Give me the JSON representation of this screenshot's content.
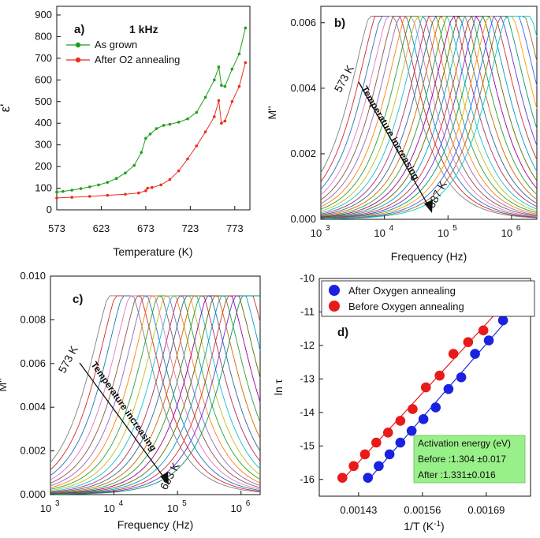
{
  "chart_data": [
    {
      "panel": "a)",
      "type": "scatter",
      "title": "1 kHz",
      "xlabel": "Temperature (K)",
      "ylabel": "ε'",
      "xlim": [
        573,
        790
      ],
      "ylim": [
        0,
        940
      ],
      "xticks": [
        "573",
        "623",
        "673",
        "723",
        "773"
      ],
      "yticks": [
        "0",
        "100",
        "200",
        "300",
        "400",
        "500",
        "600",
        "700",
        "800",
        "900"
      ],
      "legend_position": "top-left",
      "series": [
        {
          "name": "As grown",
          "color": "#1f9e1f",
          "points": [
            [
              573,
              82
            ],
            [
              580,
              85
            ],
            [
              590,
              91
            ],
            [
              600,
              98
            ],
            [
              610,
              106
            ],
            [
              620,
              115
            ],
            [
              630,
              127
            ],
            [
              640,
              145
            ],
            [
              650,
              170
            ],
            [
              660,
              205
            ],
            [
              668,
              265
            ],
            [
              673,
              330
            ],
            [
              678,
              350
            ],
            [
              685,
              375
            ],
            [
              693,
              390
            ],
            [
              700,
              395
            ],
            [
              710,
              405
            ],
            [
              720,
              420
            ],
            [
              730,
              450
            ],
            [
              740,
              520
            ],
            [
              750,
              600
            ],
            [
              755,
              660
            ],
            [
              758,
              575
            ],
            [
              762,
              570
            ],
            [
              770,
              650
            ],
            [
              778,
              720
            ],
            [
              785,
              840
            ]
          ]
        },
        {
          "name": "After O2 annealing",
          "color": "#e8301a",
          "points": [
            [
              573,
              55
            ],
            [
              590,
              58
            ],
            [
              610,
              62
            ],
            [
              630,
              67
            ],
            [
              650,
              72
            ],
            [
              665,
              78
            ],
            [
              673,
              88
            ],
            [
              675,
              100
            ],
            [
              680,
              103
            ],
            [
              690,
              115
            ],
            [
              700,
              140
            ],
            [
              710,
              180
            ],
            [
              720,
              235
            ],
            [
              730,
              295
            ],
            [
              740,
              360
            ],
            [
              750,
              430
            ],
            [
              755,
              505
            ],
            [
              758,
              400
            ],
            [
              762,
              410
            ],
            [
              770,
              500
            ],
            [
              778,
              570
            ],
            [
              785,
              680
            ]
          ]
        }
      ]
    },
    {
      "panel": "b)",
      "type": "line",
      "xlabel": "Frequency (Hz)",
      "ylabel": "M''",
      "xscale": "log",
      "xlim": [
        1000,
        2500000
      ],
      "ylim": [
        0,
        0.0065
      ],
      "xticks": [
        "10",
        "10",
        "10",
        "10"
      ],
      "xtick_exponents": [
        "3",
        "4",
        "5",
        "6"
      ],
      "yticks": [
        "0.000",
        "0.002",
        "0.004",
        "0.006"
      ],
      "curve_peak": 0.0062,
      "curve_count": 24,
      "peak_log_freq_range": [
        3.95,
        6.1
      ],
      "annotations": [
        "573 K",
        "Temperature increasing",
        "687 K"
      ]
    },
    {
      "panel": "c)",
      "type": "line",
      "xlabel": "Frequency (Hz)",
      "ylabel": "M''",
      "xscale": "log",
      "xlim": [
        1000,
        2000000
      ],
      "ylim": [
        0,
        0.01
      ],
      "xticks": [
        "10",
        "10",
        "10",
        "10"
      ],
      "xtick_exponents": [
        "3",
        "4",
        "5",
        "6"
      ],
      "yticks": [
        "0.000",
        "0.002",
        "0.004",
        "0.006",
        "0.008",
        "0.010"
      ],
      "curve_peak": 0.0091,
      "curve_count": 20,
      "peak_log_freq_range": [
        4.1,
        6.2
      ],
      "annotations": [
        "573 K",
        "Temperature increasing",
        "693 K"
      ]
    },
    {
      "panel": "d)",
      "type": "scatter",
      "xlabel": "1/T (K",
      "xlabel_sup": "-1",
      "xlabel_end": ")",
      "ylabel": "ln τ",
      "xlim": [
        0.00135,
        0.00178
      ],
      "ylim": [
        -16.5,
        -10
      ],
      "xticks": [
        "0.00143",
        "0.00156",
        "0.00169"
      ],
      "xtick_values": [
        0.00143,
        0.00156,
        0.00169
      ],
      "yticks": [
        "-10",
        "-11",
        "-12",
        "-13",
        "-14",
        "-15",
        "-16"
      ],
      "legend_position": "top-left",
      "series": [
        {
          "name": "After Oxygen annealing",
          "color": "#1a22e0",
          "x": [
            0.001449,
            0.001471,
            0.001493,
            0.001515,
            0.001538,
            0.001562,
            0.001587,
            0.001613,
            0.001639,
            0.001667,
            0.001695,
            0.001724
          ],
          "y": [
            -15.95,
            -15.6,
            -15.25,
            -14.9,
            -14.55,
            -14.2,
            -13.85,
            -13.3,
            -12.95,
            -12.25,
            -11.85,
            -11.25
          ]
        },
        {
          "name": "Before Oxygen annealing",
          "color": "#e81a1a",
          "x": [
            0.001397,
            0.00142,
            0.001443,
            0.001466,
            0.00149,
            0.001515,
            0.00154,
            0.001567,
            0.001595,
            0.001623,
            0.001653,
            0.001684,
            0.001715
          ],
          "y": [
            -15.95,
            -15.6,
            -15.25,
            -14.9,
            -14.6,
            -14.25,
            -13.9,
            -13.25,
            -12.9,
            -12.25,
            -11.9,
            -11.55,
            -10.9
          ]
        }
      ],
      "box_lines": [
        "Activation energy (eV)",
        "Before :1.304 ±0.017",
        "After :1.331±0.016"
      ]
    }
  ]
}
